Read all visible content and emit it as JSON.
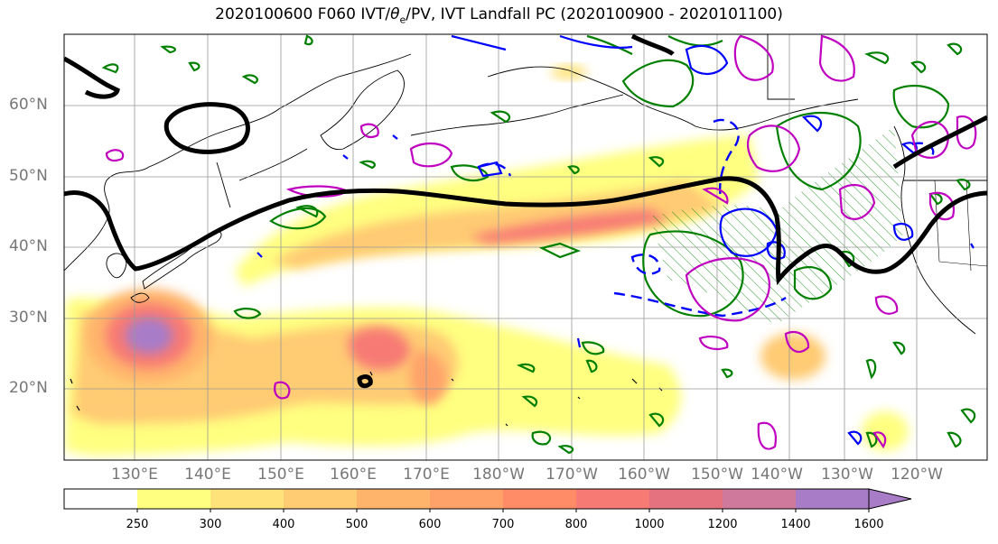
{
  "title": {
    "prefix": "2020100600 F060 IVT/",
    "theta": "θ",
    "sub": "e",
    "suffix": "/PV, IVT Landfall PC (2020100900 - 2020101100)"
  },
  "latitude_labels": [
    "60°N",
    "50°N",
    "40°N",
    "30°N",
    "20°N"
  ],
  "longitude_labels": [
    "130°E",
    "140°E",
    "150°E",
    "160°E",
    "170°E",
    "180°W",
    "170°W",
    "160°W",
    "150°W",
    "140°W",
    "130°W",
    "120°W"
  ],
  "colorbar": {
    "labels": [
      "250",
      "300",
      "400",
      "500",
      "600",
      "700",
      "800",
      "1000",
      "1200",
      "1400",
      "1600"
    ],
    "colors": [
      "#ffffff",
      "#ffff80",
      "#ffe37a",
      "#ffcb73",
      "#ffb46c",
      "#ffa26a",
      "#ff8c66",
      "#f77a75",
      "#e5727f",
      "#cf7a9c",
      "#a97cc8"
    ]
  },
  "contour_colors": {
    "black": "#000000",
    "green": "#008000",
    "blue": "#0000ff",
    "magenta": "#c000c0"
  }
}
